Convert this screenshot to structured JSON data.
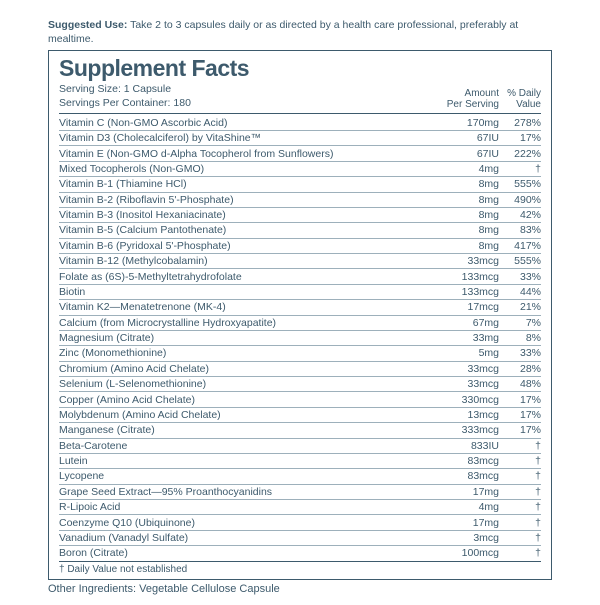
{
  "suggested": {
    "label": "Suggested Use:",
    "text": " Take 2 to 3 capsules daily or as directed by a health care professional, preferably at mealtime."
  },
  "panel": {
    "title": "Supplement Facts",
    "serving_size": "Serving Size: 1 Capsule",
    "servings_per": "Servings Per Container: 180",
    "col_amount_l1": "Amount",
    "col_amount_l2": "Per Serving",
    "col_dv_l1": "% Daily",
    "col_dv_l2": "Value",
    "footnote": "† Daily Value not established"
  },
  "other": {
    "label": "Other Ingredients:",
    "text": " Vegetable Cellulose Capsule"
  },
  "rows": [
    {
      "name": "Vitamin C (Non-GMO Ascorbic Acid)",
      "amt": "170mg",
      "dv": "278%"
    },
    {
      "name": "Vitamin D3 (Cholecalciferol) by VitaShine™",
      "amt": "67IU",
      "dv": "17%"
    },
    {
      "name": "Vitamin E (Non-GMO d-Alpha Tocopherol from Sunflowers)",
      "amt": "67IU",
      "dv": "222%"
    },
    {
      "name": "Mixed Tocopherols (Non-GMO)",
      "amt": "4mg",
      "dv": "†"
    },
    {
      "name": "Vitamin B-1 (Thiamine HCl)",
      "amt": "8mg",
      "dv": "555%"
    },
    {
      "name": "Vitamin B-2 (Riboflavin 5'-Phosphate)",
      "amt": "8mg",
      "dv": "490%"
    },
    {
      "name": "Vitamin B-3 (Inositol Hexaniacinate)",
      "amt": "8mg",
      "dv": "42%"
    },
    {
      "name": "Vitamin B-5 (Calcium Pantothenate)",
      "amt": "8mg",
      "dv": "83%"
    },
    {
      "name": "Vitamin B-6 (Pyridoxal 5'-Phosphate)",
      "amt": "8mg",
      "dv": "417%"
    },
    {
      "name": "Vitamin B-12 (Methylcobalamin)",
      "amt": "33mcg",
      "dv": "555%"
    },
    {
      "name": "Folate as (6S)-5-Methyltetrahydrofolate",
      "amt": "133mcg",
      "dv": "33%"
    },
    {
      "name": "Biotin",
      "amt": "133mcg",
      "dv": "44%"
    },
    {
      "name": "Vitamin K2—Menatetrenone (MK-4)",
      "amt": "17mcg",
      "dv": "21%"
    },
    {
      "name": "Calcium (from Microcrystalline Hydroxyapatite)",
      "amt": "67mg",
      "dv": "7%"
    },
    {
      "name": "Magnesium (Citrate)",
      "amt": "33mg",
      "dv": "8%"
    },
    {
      "name": "Zinc (Monomethionine)",
      "amt": "5mg",
      "dv": "33%"
    },
    {
      "name": "Chromium (Amino Acid Chelate)",
      "amt": "33mcg",
      "dv": "28%"
    },
    {
      "name": "Selenium (L-Selenomethionine)",
      "amt": "33mcg",
      "dv": "48%"
    },
    {
      "name": "Copper (Amino Acid Chelate)",
      "amt": "330mcg",
      "dv": "17%"
    },
    {
      "name": "Molybdenum (Amino Acid Chelate)",
      "amt": "13mcg",
      "dv": "17%"
    },
    {
      "name": "Manganese (Citrate)",
      "amt": "333mcg",
      "dv": "17%"
    },
    {
      "name": "Beta-Carotene",
      "amt": "833IU",
      "dv": "†"
    },
    {
      "name": "Lutein",
      "amt": "83mcg",
      "dv": "†"
    },
    {
      "name": "Lycopene",
      "amt": "83mcg",
      "dv": "†"
    },
    {
      "name": "Grape Seed Extract—95% Proanthocyanidins",
      "amt": "17mg",
      "dv": "†"
    },
    {
      "name": "R-Lipoic Acid",
      "amt": "4mg",
      "dv": "†"
    },
    {
      "name": "Coenzyme Q10 (Ubiquinone)",
      "amt": "17mg",
      "dv": "†"
    },
    {
      "name": "Vanadium (Vanadyl Sulfate)",
      "amt": "3mcg",
      "dv": "†"
    },
    {
      "name": "Boron (Citrate)",
      "amt": "100mcg",
      "dv": "†"
    }
  ],
  "style": {
    "text_color": "#3d5a6c",
    "rule_color": "#9db0bb",
    "background": "#ffffff"
  }
}
